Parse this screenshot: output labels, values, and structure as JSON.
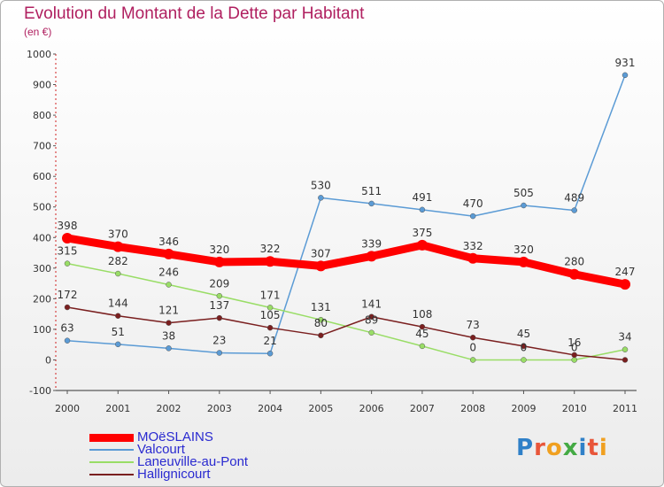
{
  "header": {
    "title": "Evolution du Montant de la Dette par Habitant",
    "subtitle": "(en €)"
  },
  "logo": {
    "text": "Proxiti",
    "colors": [
      "#2f80c8",
      "#e8563a",
      "#f0a020",
      "#44aa44",
      "#2f80c8",
      "#e8563a",
      "#f0a020"
    ]
  },
  "chart_data": {
    "type": "line",
    "title": "Evolution du Montant de la Dette par Habitant",
    "ylabel": "(en €)",
    "x": [
      "2000",
      "2001",
      "2002",
      "2003",
      "2004",
      "2005",
      "2006",
      "2007",
      "2008",
      "2009",
      "2010",
      "2011"
    ],
    "ylim": [
      -100,
      1000
    ],
    "yticks": [
      -100,
      0,
      100,
      200,
      300,
      400,
      500,
      600,
      700,
      800,
      900,
      1000
    ],
    "grid": false,
    "legend": "bottom-left",
    "series": [
      {
        "name": "MOëSLAINS",
        "color": "#ff0000",
        "values": [
          398,
          370,
          346,
          320,
          322,
          307,
          339,
          375,
          332,
          320,
          280,
          247
        ],
        "labels": [
          "398",
          "370",
          "346",
          "320",
          "322",
          "307",
          "339",
          "375",
          "332",
          "320",
          "280",
          "247"
        ]
      },
      {
        "name": "Valcourt",
        "color": "#5b9bd5",
        "values": [
          63,
          51,
          38,
          23,
          21,
          530,
          511,
          491,
          470,
          505,
          489,
          931
        ],
        "labels": [
          "63",
          "51",
          "38",
          "23",
          "21",
          "530",
          "511",
          "491",
          "470",
          "505",
          "489",
          "931"
        ]
      },
      {
        "name": "Laneuville-au-Pont",
        "color": "#99dd66",
        "values": [
          315,
          282,
          246,
          209,
          171,
          131,
          89,
          45,
          0,
          0,
          0,
          34
        ],
        "labels": [
          "315",
          "282",
          "246",
          "209",
          "171",
          "131",
          "89",
          "45",
          "0",
          "0",
          "0",
          "34"
        ]
      },
      {
        "name": "Hallignicourt",
        "color": "#7a1f1f",
        "values": [
          172,
          144,
          121,
          137,
          105,
          80,
          141,
          108,
          73,
          45,
          16,
          0
        ],
        "labels": [
          "172",
          "144",
          "121",
          "137",
          "105",
          "80",
          "141",
          "108",
          "73",
          "45",
          "16",
          ""
        ]
      }
    ]
  }
}
